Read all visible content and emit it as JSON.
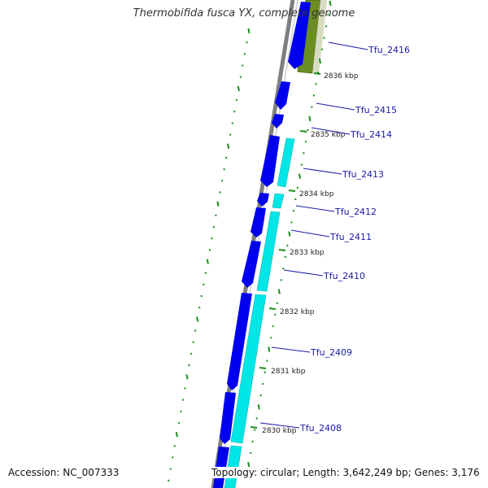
{
  "title": "Thermobifida fusca YX, complete genome",
  "footer": {
    "accession": "Accession: NC_007333",
    "topology": "Topology: circular; Length: 3,642,249 bp; Genes: 3,176"
  },
  "colors": {
    "backbone": "#7f7f7f",
    "cds_forward": "#0000ee",
    "cds_reverse": "#00e6e6",
    "feature_other": "#6b8e23",
    "tick": "#1a8f1a",
    "gene_label": "#1a1aa6"
  },
  "kbp_labels": [
    "2836 kbp",
    "2835 kbp",
    "2834 kbp",
    "2833 kbp",
    "2832 kbp",
    "2831 kbp",
    "2830 kbp"
  ],
  "gene_labels": [
    "Tfu_2416",
    "Tfu_2415",
    "Tfu_2414",
    "Tfu_2413",
    "Tfu_2412",
    "Tfu_2411",
    "Tfu_2410",
    "Tfu_2409",
    "Tfu_2408"
  ]
}
